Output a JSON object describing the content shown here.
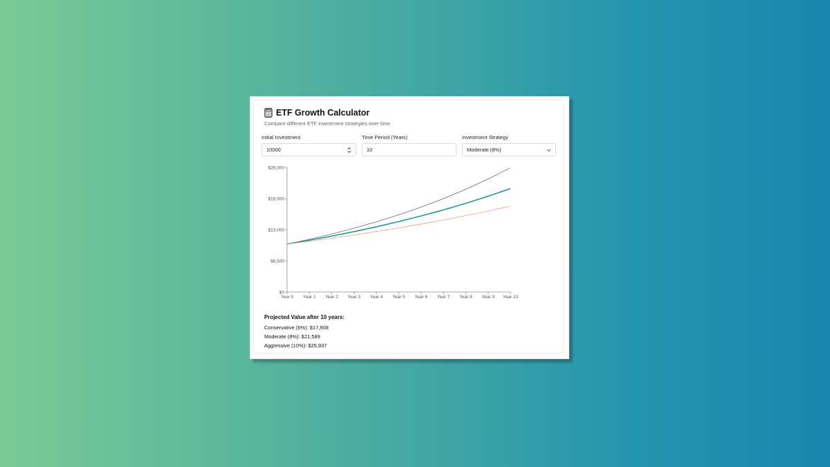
{
  "app": {
    "title": "ETF Growth Calculator",
    "subtitle": "Compare different ETF investment strategies over time",
    "icon": "calculator-icon"
  },
  "form": {
    "initial_label": "Initial Investment",
    "initial_value": "10000",
    "period_label": "Time Period (Years)",
    "period_value": "10",
    "strategy_label": "Investment Strategy",
    "strategy_value": "Moderate (8%)"
  },
  "chart_data": {
    "type": "line",
    "x": [
      "Year 0",
      "Year 1",
      "Year 2",
      "Year 3",
      "Year 4",
      "Year 5",
      "Year 6",
      "Year 7",
      "Year 8",
      "Year 9",
      "Year 10"
    ],
    "ylim": [
      0,
      26000
    ],
    "yticks": [
      "$0",
      "$6,500",
      "$13,000",
      "$19,500",
      "$26,000"
    ],
    "yticks_values": [
      0,
      6500,
      13000,
      19500,
      26000
    ],
    "series": [
      {
        "color": "#5d6d7e",
        "values": [
          10000,
          11000,
          12100,
          13310,
          14641,
          16105,
          17716,
          19487,
          21436,
          23579,
          25937
        ]
      },
      {
        "color": "#1a9b8c",
        "values": [
          10000,
          10800,
          11664,
          12597,
          13605,
          14693,
          15869,
          17138,
          18509,
          19990,
          21589
        ]
      },
      {
        "color": "#f29a82",
        "values": [
          10000,
          10600,
          11236,
          11910,
          12625,
          13382,
          14185,
          15036,
          15938,
          16895,
          17908
        ]
      }
    ],
    "grid": false,
    "legend": "none"
  },
  "results": {
    "title": "Projected Value after 10 years:",
    "lines": [
      "Conservative (6%): $17,908",
      "Moderate (8%): $21,589",
      "Aggressive (10%): $25,937"
    ]
  }
}
